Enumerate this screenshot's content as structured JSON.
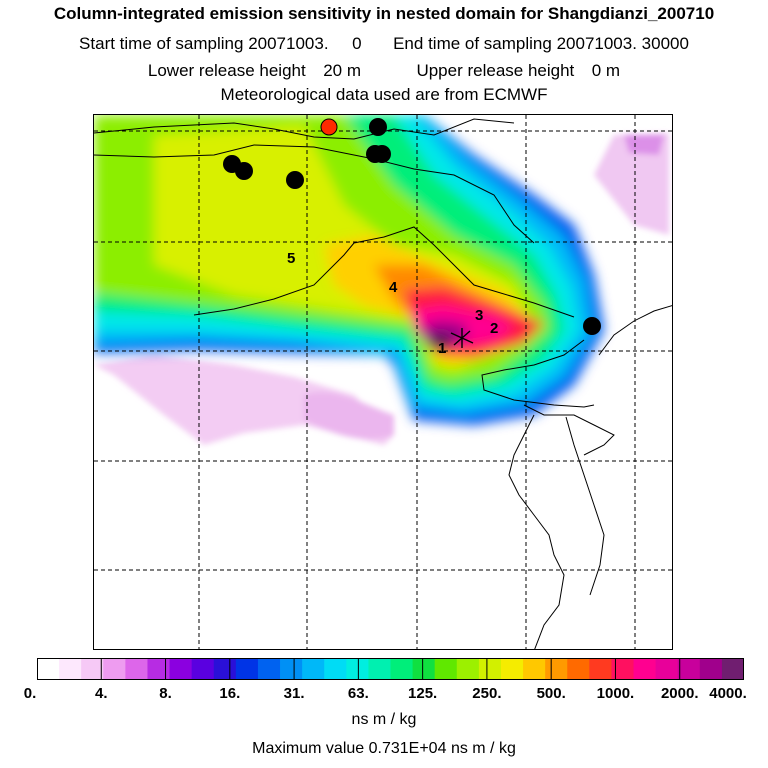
{
  "header": {
    "title": "Column-integrated emission sensitivity in nested domain for Shangdianzi_200710",
    "start_label": "Start time of sampling",
    "start_value": "20071003.     0",
    "end_label": "End time of sampling",
    "end_value": "20071003. 30000",
    "lower_label": "Lower release height",
    "lower_value": "20 m",
    "upper_label": "Upper release height",
    "upper_value": "0 m",
    "met_line": "Meteorological data used are from ECMWF"
  },
  "map": {
    "sector_labels": [
      "1",
      "2",
      "3",
      "4",
      "5"
    ],
    "colors": {
      "ocean_bg": "#ffffff",
      "contour_line": "#000000",
      "station_marker": "#ff2a00",
      "track_dot": "#000000"
    }
  },
  "colorbar": {
    "tick_labels": [
      "0.",
      "4.",
      "8.",
      "16.",
      "31.",
      "63.",
      "125.",
      "250.",
      "500.",
      "1000.",
      "2000.",
      "4000."
    ],
    "colors": [
      "#ffffff",
      "#fde8fd",
      "#f6c9f6",
      "#ee9cf0",
      "#dd66ea",
      "#b72ce3",
      "#8b00e0",
      "#5a00e0",
      "#2a10d8",
      "#0034e6",
      "#0062f0",
      "#0090f5",
      "#00b8f8",
      "#00dcf5",
      "#00eee0",
      "#00f0b0",
      "#00ee7a",
      "#10e040",
      "#60e800",
      "#9cf000",
      "#d2f000",
      "#f5ec00",
      "#ffc800",
      "#ff9a00",
      "#ff6a00",
      "#ff3a20",
      "#ff1060",
      "#ff0090",
      "#e8009a",
      "#c8009c",
      "#a0008c",
      "#701e70"
    ],
    "units": "ns m / kg"
  },
  "footer": {
    "max_label": "Maximum value",
    "max_value": "0.731E+04",
    "max_units": "ns m / kg"
  }
}
